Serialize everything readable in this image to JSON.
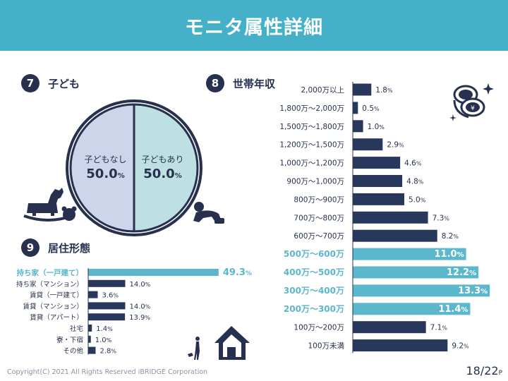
{
  "header": {
    "title": "モニタ属性詳細"
  },
  "sections": {
    "children": {
      "number": "7",
      "title": "子ども"
    },
    "income": {
      "number": "8",
      "title": "世帯年収"
    },
    "housing": {
      "number": "9",
      "title": "居住形態"
    }
  },
  "chart_data": [
    {
      "type": "pie",
      "title": "子ども",
      "labels": [
        "子どもあり",
        "子どもなし"
      ],
      "values": [
        50.0,
        50.0
      ],
      "value_labels": [
        "50.0",
        "50.0"
      ],
      "unit": "%",
      "colors": [
        "#bfe0e2",
        "#cdd5ea"
      ]
    },
    {
      "type": "bar",
      "title": "世帯年収",
      "orientation": "horizontal",
      "categories": [
        "2,000万以上",
        "1,800万～2,000万",
        "1,500万～1,800万",
        "1,200万～1,500万",
        "1,000万～1,200万",
        "900万～1,000万",
        "800万～900万",
        "700万～800万",
        "600万～700万",
        "500万～600万",
        "400万～500万",
        "300万～400万",
        "200万～300万",
        "100万～200万",
        "100万未満"
      ],
      "values": [
        1.8,
        0.5,
        1.0,
        2.9,
        4.6,
        4.8,
        5.0,
        7.3,
        8.2,
        11.0,
        12.2,
        13.3,
        11.4,
        7.1,
        9.2
      ],
      "value_labels": [
        "1.8",
        "0.5",
        "1.0",
        "2.9",
        "4.6",
        "4.8",
        "5.0",
        "7.3",
        "8.2",
        "11.0",
        "12.2",
        "13.3",
        "11.4",
        "7.1",
        "9.2"
      ],
      "highlighted": [
        false,
        false,
        false,
        false,
        false,
        false,
        false,
        false,
        false,
        true,
        true,
        true,
        true,
        false,
        false
      ],
      "unit": "%",
      "colors": {
        "normal": "#27385c",
        "highlight": "#5bb7cc"
      }
    },
    {
      "type": "bar",
      "title": "居住形態",
      "orientation": "horizontal",
      "categories": [
        "持ち家（一戸建て）",
        "持ち家（マンション）",
        "賃貸（一戸建て）",
        "賃貸（マンション）",
        "賃貸（アパート）",
        "社宅",
        "寮・下宿",
        "その他"
      ],
      "values": [
        49.3,
        14.0,
        3.6,
        14.0,
        13.9,
        1.4,
        1.0,
        2.8
      ],
      "value_labels": [
        "49.3",
        "14.0",
        "3.6",
        "14.0",
        "13.9",
        "1.4",
        "1.0",
        "2.8"
      ],
      "highlighted": [
        true,
        false,
        false,
        false,
        false,
        false,
        false,
        false
      ],
      "unit": "%",
      "colors": {
        "normal": "#27385c",
        "highlight": "#5bb7cc"
      }
    }
  ],
  "footer": {
    "copyright": "Copyright(C) 2021 All Rights Reserved iBRIDGE Corporation",
    "page": "18/22",
    "page_suffix": "P"
  }
}
